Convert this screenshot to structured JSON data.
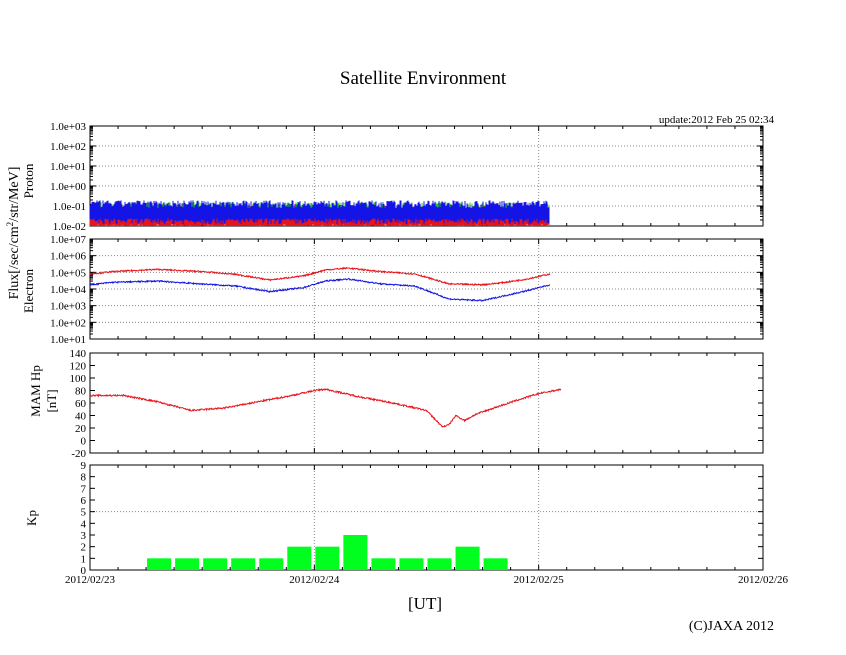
{
  "header": {
    "title": "Satellite Environment",
    "update": "update:2012 Feb 25 02:34",
    "copyright": "(C)JAXA 2012",
    "x_unit": "[UT]"
  },
  "colors": {
    "red": "#e8141c",
    "blue": "#1414e6",
    "green": "#1ec81e",
    "kp_bar": "#00ff1e",
    "grid": "#888888"
  },
  "flux_label": {
    "prefix": "Flux[/sec/cm",
    "superscript": "2",
    "suffix": "/str/MeV]"
  },
  "chart_data": [
    {
      "id": "proton",
      "type": "line",
      "title": "Proton",
      "ylabel": "Proton",
      "yscale": "log",
      "ylim": [
        0.01,
        1000
      ],
      "ytick_labels": [
        "1.0e-02",
        "1.0e-01",
        "1.0e+00",
        "1.0e+01",
        "1.0e+02",
        "1.0e+03"
      ],
      "xlim": [
        0,
        3
      ],
      "x_tick_labels": [
        "2012/02/23",
        "2012/02/24",
        "2012/02/25",
        "2012/02/26"
      ],
      "data_end_day": 2.05,
      "series": [
        {
          "name": "proton-red",
          "color": "red",
          "base": 0.06,
          "noise_min": 0.01,
          "noise_max": 0.09
        },
        {
          "name": "proton-green",
          "color": "green",
          "base": 0.09,
          "noise_min": 0.05,
          "noise_max": 0.13
        },
        {
          "name": "proton-blue",
          "color": "blue",
          "base": 0.08,
          "noise_min": 0.02,
          "noise_max": 0.16
        }
      ]
    },
    {
      "id": "electron",
      "type": "line",
      "title": "Electron",
      "ylabel": "Electron",
      "yscale": "log",
      "ylim": [
        10,
        10000000
      ],
      "ytick_labels": [
        "1.0e+01",
        "1.0e+02",
        "1.0e+03",
        "1.0e+04",
        "1.0e+05",
        "1.0e+06",
        "1.0e+07"
      ],
      "xlim": [
        0,
        3
      ],
      "series": [
        {
          "name": "electron-red",
          "color": "red",
          "x": [
            0,
            0.1,
            0.3,
            0.5,
            0.65,
            0.8,
            0.95,
            1.05,
            1.15,
            1.3,
            1.45,
            1.6,
            1.75,
            1.85,
            1.95,
            2.05
          ],
          "y": [
            80000,
            110000,
            150000,
            110000,
            75000,
            35000,
            60000,
            140000,
            180000,
            110000,
            80000,
            20000,
            18000,
            25000,
            40000,
            80000
          ]
        },
        {
          "name": "electron-blue",
          "color": "blue",
          "x": [
            0,
            0.1,
            0.3,
            0.5,
            0.65,
            0.8,
            0.95,
            1.05,
            1.15,
            1.3,
            1.45,
            1.6,
            1.75,
            1.85,
            1.95,
            2.05
          ],
          "y": [
            18000,
            25000,
            30000,
            20000,
            15000,
            7000,
            12000,
            30000,
            40000,
            20000,
            15000,
            2500,
            2000,
            4000,
            8000,
            18000
          ]
        }
      ]
    },
    {
      "id": "mam-hp",
      "type": "line",
      "ylabel": "MAM Hp",
      "yunit": "[nT]",
      "ylim": [
        -20,
        140
      ],
      "yticks": [
        -20,
        0,
        20,
        40,
        60,
        80,
        100,
        120,
        140
      ],
      "xlim": [
        0,
        3
      ],
      "series": [
        {
          "name": "mam-hp",
          "color": "red",
          "x": [
            0,
            0.15,
            0.3,
            0.45,
            0.6,
            0.75,
            0.9,
            1.0,
            1.05,
            1.2,
            1.35,
            1.5,
            1.57,
            1.6,
            1.63,
            1.67,
            1.72,
            1.8,
            1.9,
            2.0,
            2.1
          ],
          "y": [
            72,
            72,
            62,
            48,
            52,
            62,
            72,
            80,
            82,
            70,
            60,
            48,
            22,
            25,
            40,
            32,
            42,
            52,
            64,
            75,
            82
          ]
        }
      ]
    },
    {
      "id": "kp",
      "type": "bar",
      "ylabel": "Kp",
      "ylim": [
        0,
        9
      ],
      "yticks": [
        0,
        1,
        2,
        3,
        4,
        5,
        6,
        7,
        8,
        9
      ],
      "xlim": [
        0,
        3
      ],
      "x_tick_labels": [
        "2012/02/23",
        "2012/02/24",
        "2012/02/25",
        "2012/02/26"
      ],
      "bar_width_days": 0.125,
      "x": [
        0.25,
        0.375,
        0.5,
        0.625,
        0.75,
        0.875,
        1.0,
        1.125,
        1.25,
        1.375,
        1.5,
        1.625,
        1.75
      ],
      "values": [
        1,
        1,
        1,
        1,
        1,
        2,
        2,
        3,
        1,
        1,
        1,
        2,
        1
      ]
    }
  ]
}
